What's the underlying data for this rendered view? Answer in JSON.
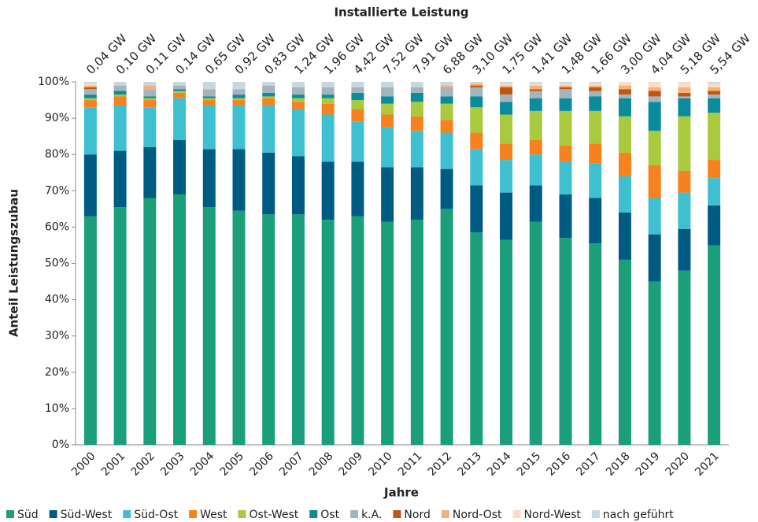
{
  "chart_data": {
    "type": "stacked_bar",
    "title": "Installierte Leistung",
    "x_label": "Jahre",
    "y_label": "Anteil Leistungszubau",
    "categories": [
      "2000",
      "2001",
      "2002",
      "2003",
      "2004",
      "2005",
      "2006",
      "2007",
      "2008",
      "2009",
      "2010",
      "2011",
      "2012",
      "2013",
      "2014",
      "2015",
      "2016",
      "2017",
      "2018",
      "2019",
      "2020",
      "2021"
    ],
    "top_labels": [
      "0,04 GW",
      "0,10 GW",
      "0,11 GW",
      "0,14 GW",
      "0,65 GW",
      "0,92 GW",
      "0,83 GW",
      "1,24 GW",
      "1,96 GW",
      "4,42 GW",
      "7,52 GW",
      "7,91 GW",
      "6,88 GW",
      "3,10 GW",
      "1,75 GW",
      "1,41 GW",
      "1,48 GW",
      "1,66 GW",
      "3,00 GW",
      "4,04 GW",
      "5,18 GW",
      "5,54 GW"
    ],
    "ylim": [
      0,
      100
    ],
    "yticks": [
      {
        "value": 0,
        "label": "0%"
      },
      {
        "value": 10,
        "label": "10%"
      },
      {
        "value": 20,
        "label": "20%"
      },
      {
        "value": 30,
        "label": "30%"
      },
      {
        "value": 40,
        "label": "40%"
      },
      {
        "value": 50,
        "label": "50%"
      },
      {
        "value": 60,
        "label": "60%"
      },
      {
        "value": 70,
        "label": "70%"
      },
      {
        "value": 80,
        "label": "80%"
      },
      {
        "value": 90,
        "label": "90%"
      },
      {
        "value": 100,
        "label": "100%"
      }
    ],
    "legend": "bottom",
    "series": [
      {
        "name": "Süd",
        "color": "#1b9e7a",
        "values": [
          63,
          65.5,
          68,
          69,
          65.5,
          64.5,
          63.5,
          63.5,
          62,
          63,
          61.5,
          62,
          65,
          58.5,
          56.5,
          61.5,
          57,
          55.5,
          51,
          45,
          48,
          55
        ]
      },
      {
        "name": "Süd-West",
        "color": "#005b82",
        "values": [
          17,
          15.5,
          14,
          15,
          16,
          17,
          17,
          16,
          16,
          15,
          15,
          14.5,
          11,
          13,
          13,
          10,
          12,
          12.5,
          13,
          13,
          11.5,
          11
        ]
      },
      {
        "name": "Süd-Ost",
        "color": "#3fc0d0",
        "values": [
          13,
          12.5,
          11,
          11.5,
          12,
          12,
          13,
          13,
          13,
          11,
          11,
          10,
          10,
          10,
          9,
          8.5,
          9,
          9.5,
          10,
          10,
          10,
          7.5
        ]
      },
      {
        "name": "West",
        "color": "#f5821f",
        "values": [
          2,
          2.5,
          2,
          1.5,
          1.5,
          1.5,
          2,
          2,
          3,
          3.5,
          3.5,
          4,
          3.5,
          4.5,
          4.5,
          4,
          4.5,
          5.5,
          6.5,
          9,
          6,
          5
        ]
      },
      {
        "name": "Ost-West",
        "color": "#a9c93e",
        "values": [
          0.5,
          0.5,
          0.5,
          0.5,
          0.5,
          0.5,
          0.5,
          1,
          1.5,
          2.5,
          3,
          4,
          4.5,
          7,
          8,
          8,
          9.5,
          9,
          10,
          9.5,
          15,
          13
        ]
      },
      {
        "name": "Ost",
        "color": "#0a8c9c",
        "values": [
          1,
          1,
          0.5,
          0.5,
          0.5,
          1,
          1,
          1,
          1,
          2,
          2,
          2.5,
          2,
          3,
          3.5,
          3.5,
          3.5,
          4,
          5,
          8,
          5,
          4
        ]
      },
      {
        "name": "k.A.",
        "color": "#a3b4bd",
        "values": [
          1.5,
          1.5,
          2,
          1,
          2,
          1.5,
          2,
          2,
          2,
          1.5,
          2.5,
          1.5,
          2.5,
          2.5,
          2,
          2,
          2.5,
          1.5,
          1,
          1.5,
          0.5,
          1
        ]
      },
      {
        "name": "Nord",
        "color": "#c0560f",
        "values": [
          0.5,
          0,
          0,
          0,
          0,
          0,
          0,
          0,
          0,
          0,
          0,
          0,
          0,
          0.5,
          2,
          0.5,
          0.5,
          1,
          1.5,
          1.5,
          1,
          1
        ]
      },
      {
        "name": "Nord-Ost",
        "color": "#f2b27a",
        "values": [
          0.5,
          0,
          1,
          0,
          0,
          0,
          0,
          0,
          0,
          0,
          0,
          0,
          0.5,
          0.5,
          0.5,
          1,
          0.5,
          0.5,
          1,
          1,
          1.5,
          1
        ]
      },
      {
        "name": "Nord-West",
        "color": "#fbdcc8",
        "values": [
          0.5,
          0,
          0,
          0,
          0,
          0,
          0,
          0,
          0,
          0,
          0,
          0,
          0,
          0,
          0.5,
          0.5,
          0.5,
          0.5,
          1,
          1.5,
          1.5,
          1
        ]
      },
      {
        "name": "nach geführt",
        "color": "#c8d6de",
        "values": [
          0.5,
          1,
          1,
          1,
          2,
          2,
          1,
          1.5,
          1.5,
          1.5,
          1.5,
          1.5,
          1,
          0.5,
          0.5,
          0.5,
          0.5,
          0.5,
          0,
          0,
          0,
          0.5
        ]
      }
    ]
  }
}
